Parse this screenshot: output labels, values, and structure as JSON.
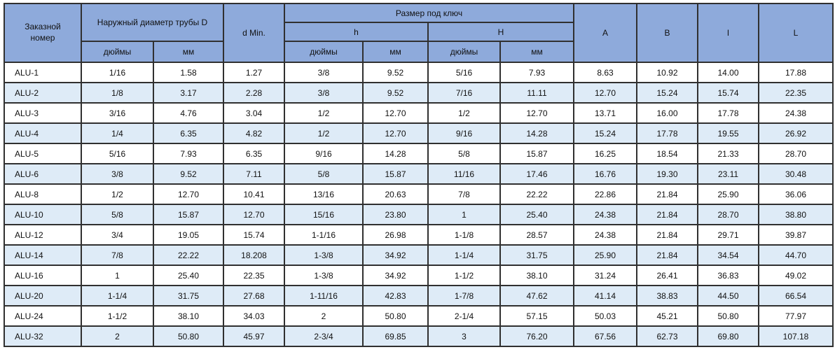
{
  "table": {
    "headers": {
      "order_number": "Заказной номер",
      "outer_diameter": "Наружный диаметр трубы D",
      "d_min": "d Min.",
      "wrench_size": "Размер под ключ",
      "h_label": "h",
      "H_label": "H",
      "inches_label": "дюймы",
      "mm_label": "мм",
      "a_label": "A",
      "b_label": "B",
      "l_label": "l",
      "L_label": "L"
    },
    "column_keys": [
      "order-number",
      "outer-diameter-inches",
      "outer-diameter-mm",
      "d-min",
      "h-inches",
      "h-mm",
      "H-inches",
      "H-mm",
      "A",
      "B",
      "l",
      "L"
    ],
    "rows": [
      [
        "ALU-1",
        "1/16",
        "1.58",
        "1.27",
        "3/8",
        "9.52",
        "5/16",
        "7.93",
        "8.63",
        "10.92",
        "14.00",
        "17.88"
      ],
      [
        "ALU-2",
        "1/8",
        "3.17",
        "2.28",
        "3/8",
        "9.52",
        "7/16",
        "11.11",
        "12.70",
        "15.24",
        "15.74",
        "22.35"
      ],
      [
        "ALU-3",
        "3/16",
        "4.76",
        "3.04",
        "1/2",
        "12.70",
        "1/2",
        "12.70",
        "13.71",
        "16.00",
        "17.78",
        "24.38"
      ],
      [
        "ALU-4",
        "1/4",
        "6.35",
        "4.82",
        "1/2",
        "12.70",
        "9/16",
        "14.28",
        "15.24",
        "17.78",
        "19.55",
        "26.92"
      ],
      [
        "ALU-5",
        "5/16",
        "7.93",
        "6.35",
        "9/16",
        "14.28",
        "5/8",
        "15.87",
        "16.25",
        "18.54",
        "21.33",
        "28.70"
      ],
      [
        "ALU-6",
        "3/8",
        "9.52",
        "7.11",
        "5/8",
        "15.87",
        "11/16",
        "17.46",
        "16.76",
        "19.30",
        "23.11",
        "30.48"
      ],
      [
        "ALU-8",
        "1/2",
        "12.70",
        "10.41",
        "13/16",
        "20.63",
        "7/8",
        "22.22",
        "22.86",
        "21.84",
        "25.90",
        "36.06"
      ],
      [
        "ALU-10",
        "5/8",
        "15.87",
        "12.70",
        "15/16",
        "23.80",
        "1",
        "25.40",
        "24.38",
        "21.84",
        "28.70",
        "38.80"
      ],
      [
        "ALU-12",
        "3/4",
        "19.05",
        "15.74",
        "1-1/16",
        "26.98",
        "1-1/8",
        "28.57",
        "24.38",
        "21.84",
        "29.71",
        "39.87"
      ],
      [
        "ALU-14",
        "7/8",
        "22.22",
        "18.208",
        "1-3/8",
        "34.92",
        "1-1/4",
        "31.75",
        "25.90",
        "21.84",
        "34.54",
        "44.70"
      ],
      [
        "ALU-16",
        "1",
        "25.40",
        "22.35",
        "1-3/8",
        "34.92",
        "1-1/2",
        "38.10",
        "31.24",
        "26.41",
        "36.83",
        "49.02"
      ],
      [
        "ALU-20",
        "1-1/4",
        "31.75",
        "27.68",
        "1-11/16",
        "42.83",
        "1-7/8",
        "47.62",
        "41.14",
        "38.83",
        "44.50",
        "66.54"
      ],
      [
        "ALU-24",
        "1-1/2",
        "38.10",
        "34.03",
        "2",
        "50.80",
        "2-1/4",
        "57.15",
        "50.03",
        "45.21",
        "50.80",
        "77.97"
      ],
      [
        "ALU-32",
        "2",
        "50.80",
        "45.97",
        "2-3/4",
        "69.85",
        "3",
        "76.20",
        "67.56",
        "62.73",
        "69.80",
        "107.18"
      ]
    ]
  },
  "colors": {
    "header_bg": "#8EAADB",
    "row_alt_bg": "#DEEBF7",
    "row_bg": "#FFFFFF",
    "border": "#303030"
  }
}
